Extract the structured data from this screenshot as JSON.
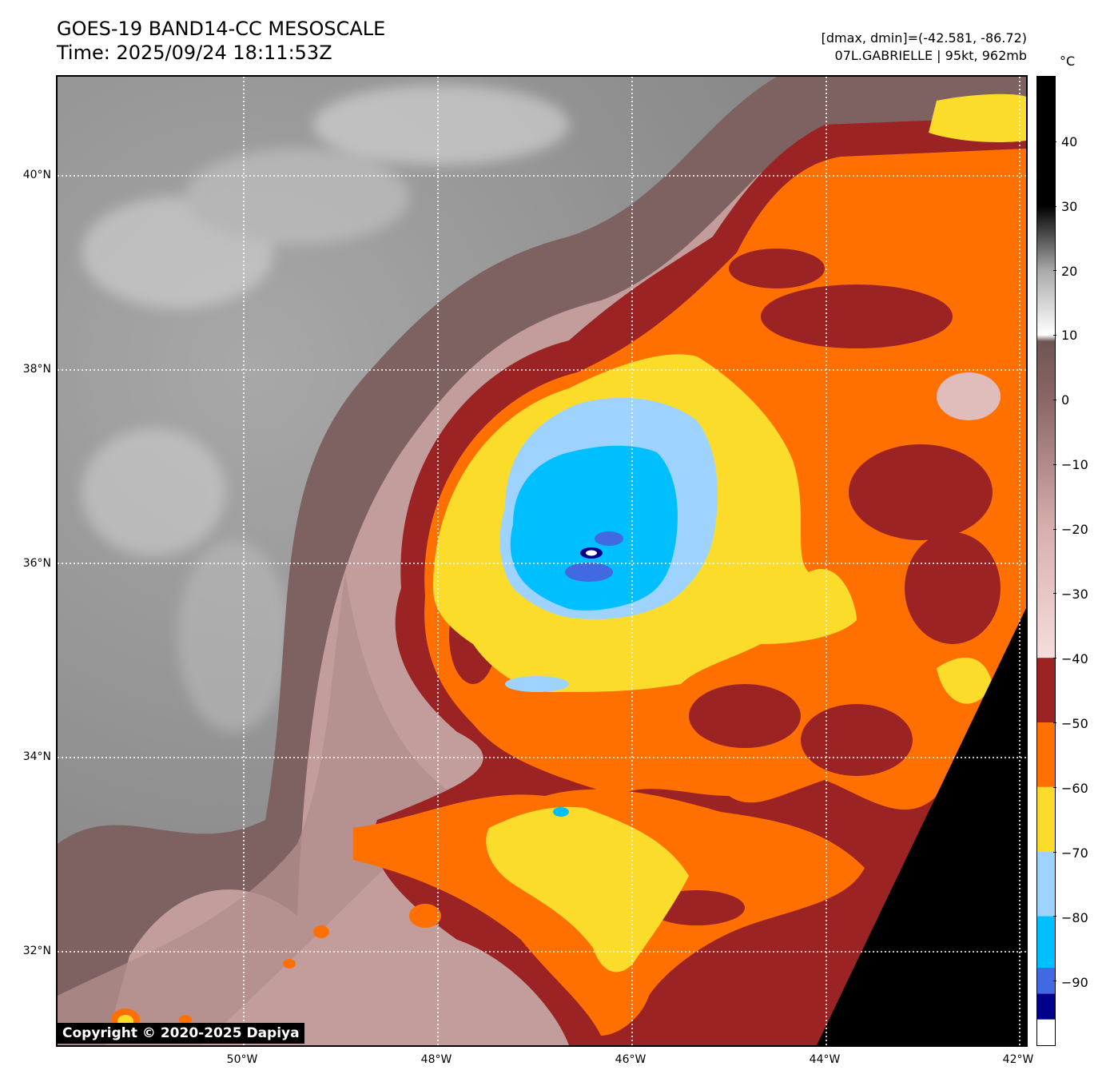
{
  "header": {
    "title_line1": "GOES-19 BAND14-CC MESOSCALE",
    "title_line2": "Time: 2025/09/24 18:11:53Z",
    "info_line1": "[dmax, dmin]=(-42.581, -86.72)",
    "info_line2": "07L.GABRIELLE | 95kt, 962mb"
  },
  "map": {
    "lat_labels": [
      "40°N",
      "38°N",
      "36°N",
      "34°N",
      "32°N"
    ],
    "lon_labels": [
      "50°W",
      "48°W",
      "46°W",
      "44°W",
      "42°W"
    ],
    "copyright": "Copyright © 2020-2025 Dapiya",
    "gridline_color": "#ffffff",
    "no_data_color": "#000000"
  },
  "colorbar": {
    "unit": "°C",
    "ticks": [
      "40",
      "30",
      "20",
      "10",
      "0",
      "−10",
      "−20",
      "−30",
      "−40",
      "−50",
      "−60",
      "−70",
      "−80",
      "−90"
    ],
    "bands": [
      {
        "from": -100,
        "to": -96,
        "color": "#ffffff"
      },
      {
        "from": -96,
        "to": -92,
        "color": "#00008b"
      },
      {
        "from": -92,
        "to": -88,
        "color": "#4169e1"
      },
      {
        "from": -88,
        "to": -80,
        "color": "#00bfff"
      },
      {
        "from": -80,
        "to": -70,
        "color": "#9fd3ff"
      },
      {
        "from": -70,
        "to": -60,
        "color": "#fcdc2a"
      },
      {
        "from": -60,
        "to": -50,
        "color": "#ff7000"
      },
      {
        "from": -50,
        "to": -40,
        "color": "#9b2323"
      }
    ],
    "gradient": [
      {
        "t": -40,
        "color": "#f6dddd"
      },
      {
        "t": -20,
        "color": "#d7b0ae"
      },
      {
        "t": 0,
        "color": "#8a6665"
      },
      {
        "t": 9,
        "color": "#6f5655"
      },
      {
        "t": 10,
        "color": "#ffffff"
      },
      {
        "t": 20,
        "color": "#a9a9a9"
      },
      {
        "t": 30,
        "color": "#000000"
      },
      {
        "t": 40,
        "color": "#000000"
      },
      {
        "t": 50,
        "color": "#000000"
      }
    ]
  }
}
